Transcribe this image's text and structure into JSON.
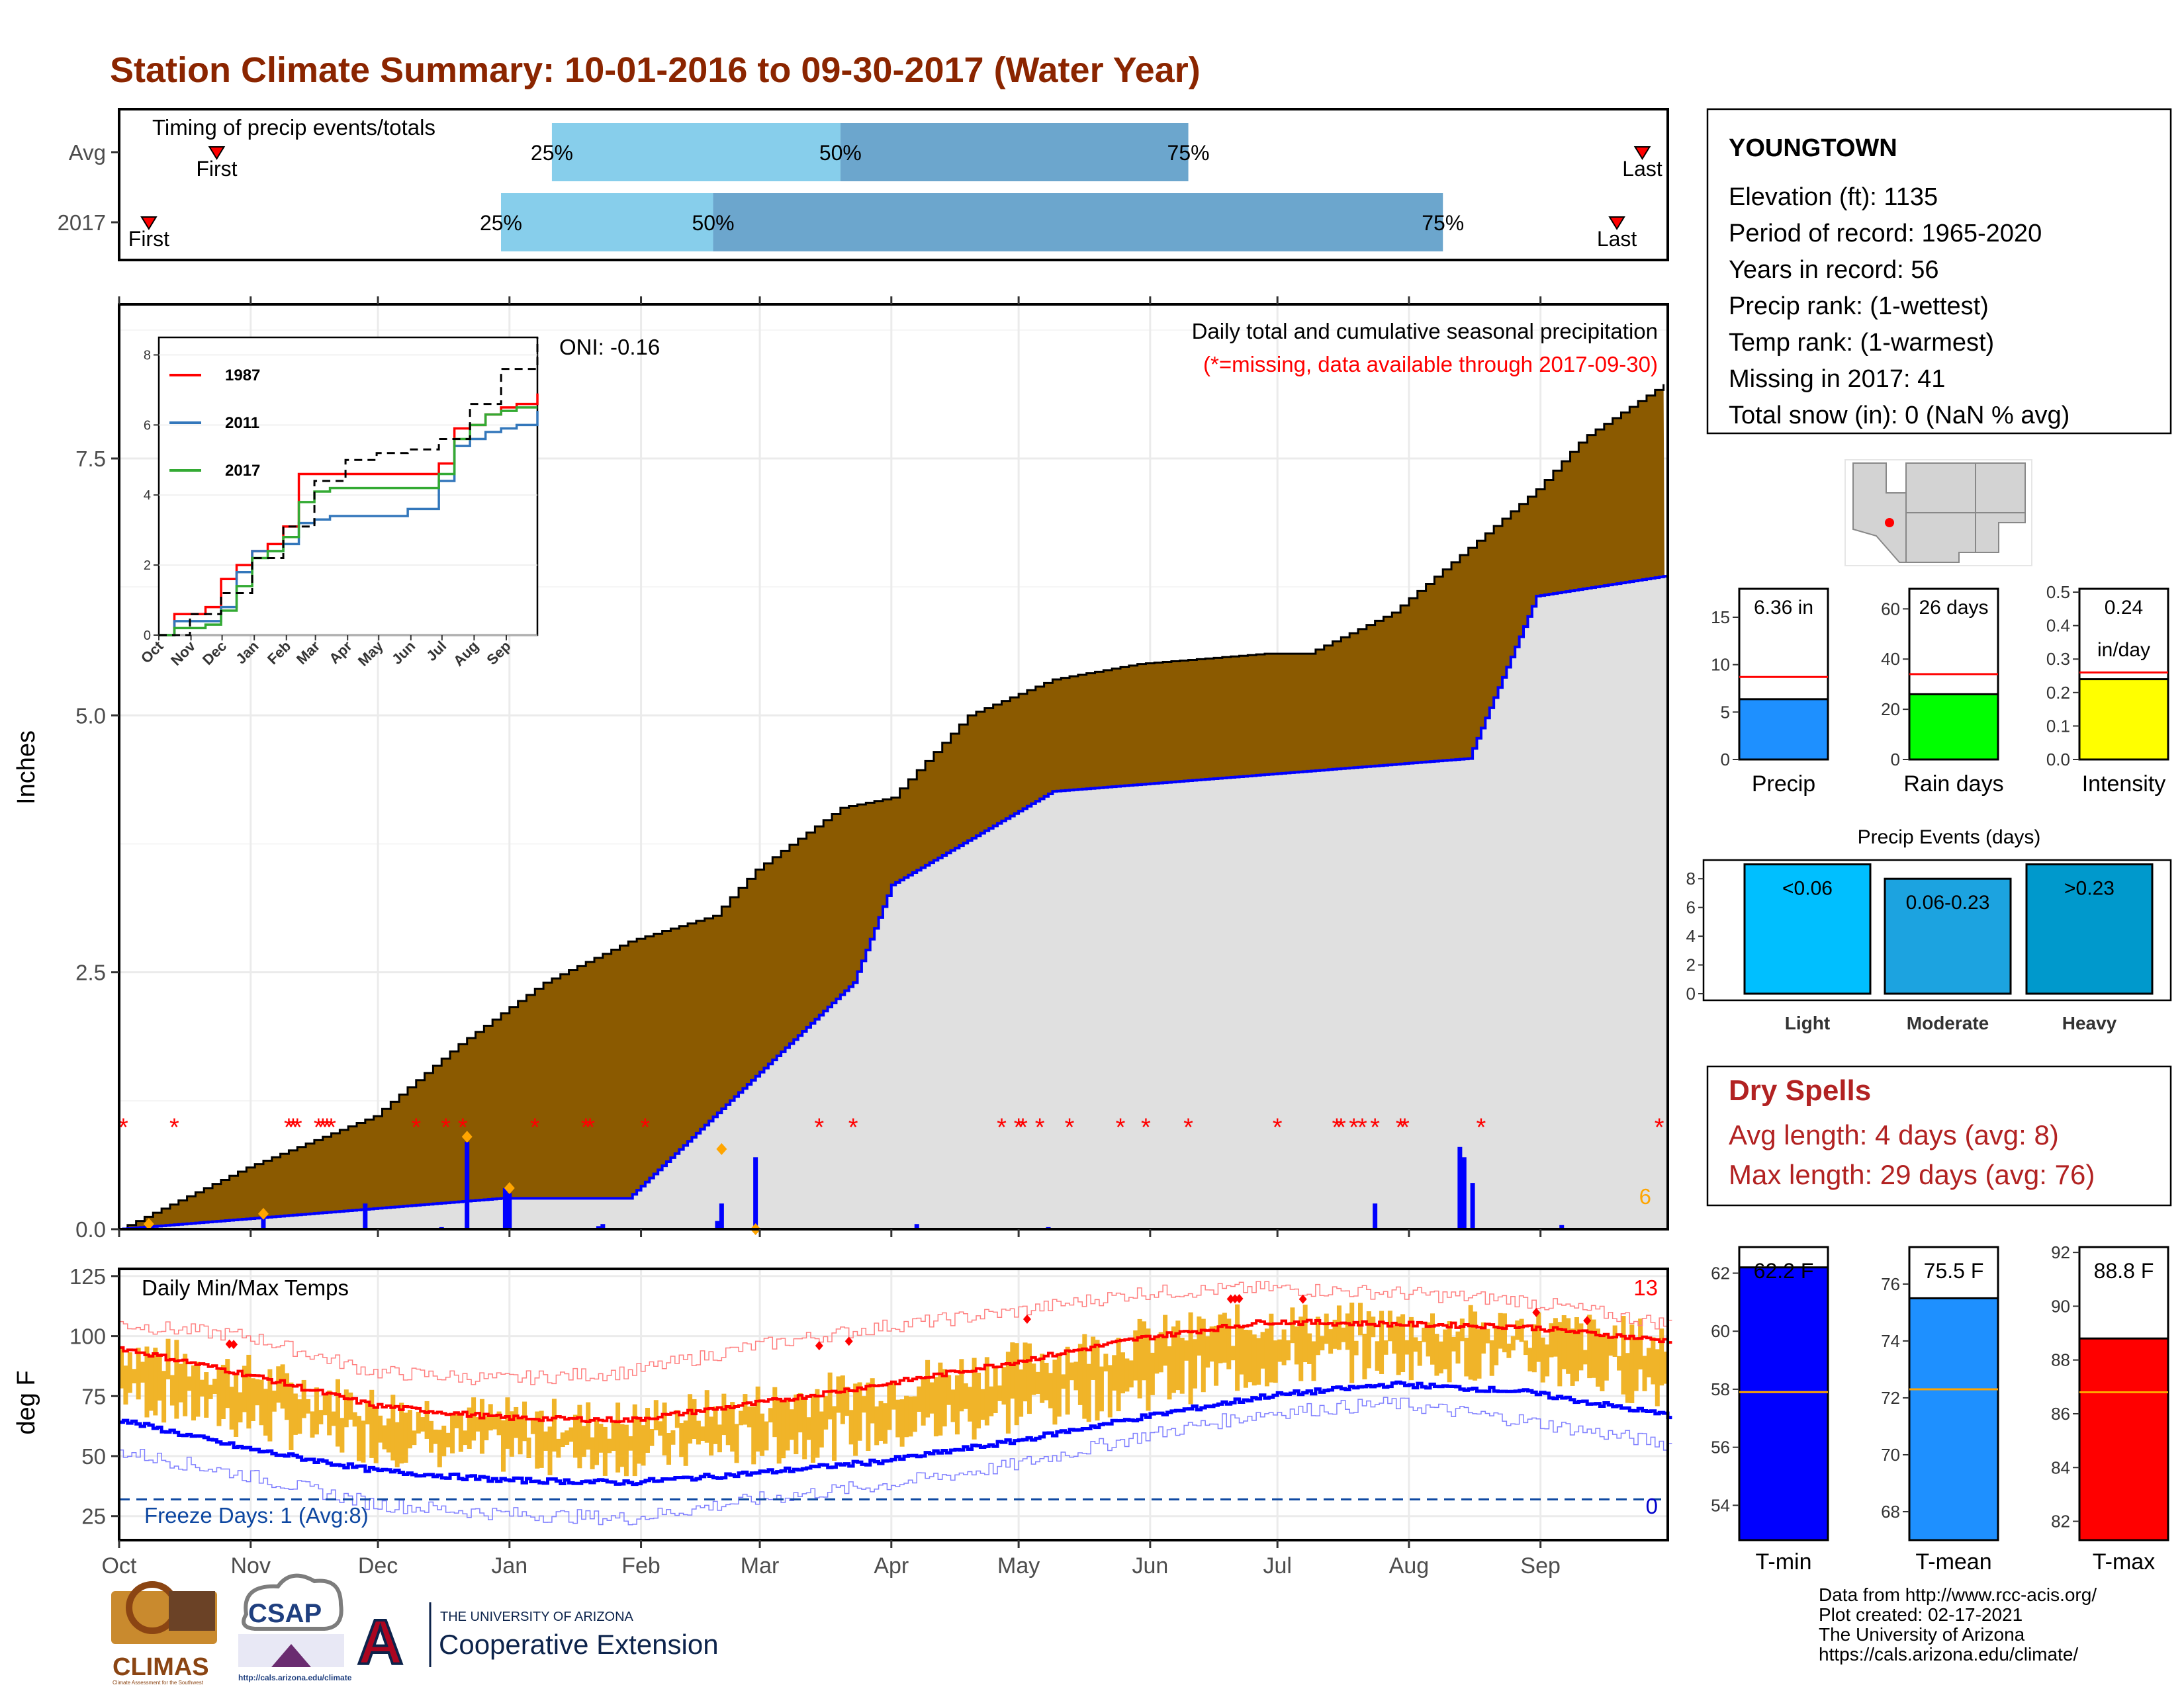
{
  "title": "Station Climate Summary: 10-01-2016 to 09-30-2017 (Water Year)",
  "colors": {
    "title": "#8B2500",
    "brown": "#8B5A00",
    "gray_fill": "#E0E0E0",
    "blue": "#0000FF",
    "red": "#FF0000",
    "orange": "#FFA500",
    "gold": "#F0B429",
    "light_blue": "#87CEEB",
    "steel_blue": "#6CA6CD",
    "dry_red": "#B22222",
    "precip_blue": "#1E90FF",
    "rain_green": "#00FF00",
    "intensity_yellow": "#FFFF00",
    "light_events": "#00BFFF",
    "moderate_events": "#1CA3E0",
    "heavy_events": "#0099CC",
    "tmin": "#0000FF",
    "tmean": "#1E90FF",
    "tmax": "#FF0000"
  },
  "months": [
    "Oct",
    "Nov",
    "Dec",
    "Jan",
    "Feb",
    "Mar",
    "Apr",
    "May",
    "Jun",
    "Jul",
    "Aug",
    "Sep"
  ],
  "timing": {
    "label": "Timing of precip events/totals",
    "rows": [
      {
        "label": "Avg",
        "first_day": 23,
        "last_day": 359,
        "p25_day": 102,
        "p50_day": 170,
        "p75_day": 252,
        "p25": "25%",
        "p50": "50%",
        "p75": "75%",
        "first": "First",
        "last": "Last"
      },
      {
        "label": "2017",
        "first_day": 7,
        "last_day": 353,
        "p25_day": 90,
        "p50_day": 140,
        "p75_day": 312,
        "p25": "25%",
        "p50": "50%",
        "p75": "75%",
        "first": "First",
        "last": "Last"
      }
    ]
  },
  "precip_panel": {
    "ylabel": "Inches",
    "yticks": [
      "0.0",
      "2.5",
      "5.0",
      "7.5"
    ],
    "oni": "ONI: -0.16",
    "subtitle": "Daily total and cumulative seasonal precipitation",
    "missing_note": "(*=missing, data available through 2017-09-30)",
    "count_label": "6"
  },
  "inset": {
    "series": [
      {
        "name": "1987"
      },
      {
        "name": "2011"
      },
      {
        "name": "2017"
      }
    ],
    "yticks": [
      "0",
      "2",
      "4",
      "6",
      "8"
    ],
    "xticks": [
      "Oct",
      "Nov",
      "Dec",
      "Jan",
      "Feb",
      "Mar",
      "Apr",
      "May",
      "Jun",
      "Jul",
      "Aug",
      "Sep"
    ]
  },
  "temp_panel": {
    "title": "Daily Min/Max Temps",
    "ylabel": "deg F",
    "yticks": [
      "25",
      "50",
      "75",
      "100",
      "125"
    ],
    "freeze": "Freeze Days: 1 (Avg:8)",
    "count_hot": "13",
    "count_freeze": "0"
  },
  "station": {
    "name": "YOUNGTOWN",
    "lines": [
      "Elevation (ft): 1135",
      "Period of record: 1965-2020",
      "Years in record: 56",
      "Precip rank:  (1-wettest)",
      "Temp rank:  (1-warmest)",
      "Missing in 2017: 41",
      "Total snow (in): 0 (NaN % avg)"
    ]
  },
  "mini_bars": [
    {
      "label": "Precip",
      "value_text": "6.36 in",
      "value": 6.36,
      "avg": 8.7,
      "ymax": 18,
      "yticks": [
        "0",
        "5",
        "10",
        "15"
      ],
      "ytick_vals": [
        0,
        5,
        10,
        15
      ]
    },
    {
      "label": "Rain days",
      "value_text": "26 days",
      "value": 26,
      "avg": 34,
      "ymax": 68,
      "yticks": [
        "0",
        "20",
        "40",
        "60"
      ],
      "ytick_vals": [
        0,
        20,
        40,
        60
      ]
    },
    {
      "label": "Intensity",
      "value_text": "0.24",
      "value_text2": "in/day",
      "value": 0.24,
      "avg": 0.26,
      "ymax": 0.51,
      "yticks": [
        "0.0",
        "0.1",
        "0.2",
        "0.3",
        "0.4",
        "0.5"
      ],
      "ytick_vals": [
        0,
        0.1,
        0.2,
        0.3,
        0.4,
        0.5
      ]
    }
  ],
  "events": {
    "title": "Precip Events (days)",
    "yticks": [
      "0",
      "2",
      "4",
      "6",
      "8"
    ],
    "bars": [
      {
        "name": "Light",
        "range": "<0.06",
        "value": 9
      },
      {
        "name": "Moderate",
        "range": "0.06-0.23",
        "value": 8
      },
      {
        "name": "Heavy",
        "range": ">0.23",
        "value": 9
      }
    ]
  },
  "dry_spells": {
    "title": "Dry Spells",
    "avg_line": "Avg length: 4 days (avg: 8)",
    "max_line": "Max length: 29 days (avg: 76)"
  },
  "temp_bars": [
    {
      "label": "T-min",
      "value_text": "62.2 F",
      "value": 62.2,
      "avg": 57.9,
      "ymin": 52.8,
      "ymax": 62.9,
      "yticks": [
        "54",
        "56",
        "58",
        "60",
        "62"
      ],
      "ytick_vals": [
        54,
        56,
        58,
        60,
        62
      ]
    },
    {
      "label": "T-mean",
      "value_text": "75.5 F",
      "value": 75.5,
      "avg": 72.3,
      "ymin": 67.0,
      "ymax": 77.3,
      "yticks": [
        "68",
        "70",
        "72",
        "74",
        "76"
      ],
      "ytick_vals": [
        68,
        70,
        72,
        74,
        76
      ]
    },
    {
      "label": "T-max",
      "value_text": "88.8 F",
      "value": 88.8,
      "avg": 86.8,
      "ymin": 81.3,
      "ymax": 92.2,
      "yticks": [
        "82",
        "84",
        "86",
        "88",
        "90",
        "92"
      ],
      "ytick_vals": [
        82,
        84,
        86,
        88,
        90,
        92
      ]
    }
  ],
  "footer": {
    "lines": [
      "Data from http://www.rcc-acis.org/",
      "Plot created: 02-17-2021",
      "The University of Arizona",
      "https://cals.arizona.edu/climate/"
    ],
    "logos": {
      "climas": "CLIMAS",
      "climas_sub": "Climate Assessment for the Southwest",
      "csap": "CSAP",
      "csap_url": "http://cals.arizona.edu/climate",
      "ua_small": "THE UNIVERSITY OF ARIZONA",
      "ua_big": "Cooperative Extension",
      "ua_letter": "A"
    }
  },
  "chart_data": [
    {
      "type": "area",
      "title": "Daily total and cumulative seasonal precipitation",
      "ylabel": "Inches",
      "ylim": [
        0,
        9.0
      ],
      "x_unit": "day of water year",
      "cumulative_2017_breakpoints": {
        "x": [
          0,
          90,
          120,
          173,
          182,
          220,
          318,
          334,
          365
        ],
        "y": [
          0,
          0.3,
          0.3,
          2.4,
          3.35,
          4.26,
          4.58,
          6.16,
          6.36
        ]
      },
      "cumulative_avg_breakpoints": {
        "x": [
          0,
          30,
          60,
          80,
          100,
          120,
          140,
          150,
          170,
          182,
          200,
          220,
          240,
          270,
          280,
          300,
          320,
          334,
          345,
          365
        ],
        "y": [
          0,
          0.6,
          1.1,
          1.8,
          2.4,
          2.8,
          3.05,
          3.5,
          4.1,
          4.2,
          5.0,
          5.35,
          5.5,
          5.6,
          5.6,
          6.0,
          6.7,
          7.2,
          7.7,
          8.25
        ]
      },
      "daily_bars": [
        {
          "x": 34,
          "y": 0.1
        },
        {
          "x": 58,
          "y": 0.25
        },
        {
          "x": 76,
          "y": 0.02
        },
        {
          "x": 82,
          "y": 0.85
        },
        {
          "x": 91,
          "y": 0.4
        },
        {
          "x": 92,
          "y": 0.35
        },
        {
          "x": 100,
          "y": 0.01
        },
        {
          "x": 113,
          "y": 0.03
        },
        {
          "x": 114,
          "y": 0.05
        },
        {
          "x": 141,
          "y": 0.08
        },
        {
          "x": 142,
          "y": 0.25
        },
        {
          "x": 150,
          "y": 0.7
        },
        {
          "x": 188,
          "y": 0.05
        },
        {
          "x": 219,
          "y": 0.02
        },
        {
          "x": 296,
          "y": 0.25
        },
        {
          "x": 316,
          "y": 0.8
        },
        {
          "x": 317,
          "y": 0.7
        },
        {
          "x": 319,
          "y": 0.45
        },
        {
          "x": 340,
          "y": 0.04
        }
      ],
      "missing_days": [
        1,
        13,
        40,
        41,
        42,
        47,
        48,
        49,
        50,
        70,
        77,
        81,
        98,
        110,
        111,
        124,
        165,
        173,
        208,
        212,
        213,
        217,
        224,
        236,
        242,
        252,
        273,
        287,
        288,
        291,
        293,
        296,
        302,
        303,
        321,
        363
      ],
      "first_percentile_markers": [
        {
          "x": 7,
          "y": 0.05
        },
        {
          "x": 34,
          "y": 0.15
        },
        {
          "x": 82,
          "y": 0.9
        },
        {
          "x": 92,
          "y": 0.4
        },
        {
          "x": 142,
          "y": 0.78
        },
        {
          "x": 150,
          "y": 0.0
        }
      ],
      "missing_count": 6
    },
    {
      "type": "line",
      "title": "",
      "series": [
        {
          "name": "1987",
          "x": [
            0,
            15,
            30,
            45,
            60,
            75,
            90,
            105,
            120,
            135,
            150,
            165,
            180,
            195,
            210,
            225,
            240,
            255,
            270,
            285,
            300,
            315,
            330,
            345,
            365
          ],
          "y": [
            0,
            0.6,
            0.6,
            0.8,
            1.6,
            2.0,
            2.4,
            2.6,
            3.1,
            4.6,
            4.6,
            4.6,
            4.6,
            4.6,
            4.6,
            4.6,
            4.6,
            4.6,
            4.9,
            5.9,
            6.0,
            6.3,
            6.5,
            6.6,
            6.9
          ]
        },
        {
          "name": "2011",
          "x": [
            0,
            15,
            30,
            45,
            60,
            75,
            90,
            105,
            120,
            135,
            150,
            165,
            180,
            195,
            210,
            225,
            240,
            255,
            270,
            285,
            300,
            315,
            330,
            345,
            365
          ],
          "y": [
            0,
            0.4,
            0.4,
            0.4,
            0.8,
            1.8,
            2.4,
            2.4,
            2.6,
            3.2,
            3.3,
            3.4,
            3.4,
            3.4,
            3.4,
            3.4,
            3.6,
            3.6,
            4.4,
            5.4,
            5.6,
            5.8,
            5.9,
            6.0,
            6.4
          ]
        },
        {
          "name": "2017",
          "x": [
            0,
            15,
            30,
            45,
            60,
            75,
            90,
            105,
            120,
            135,
            150,
            165,
            180,
            195,
            210,
            225,
            240,
            255,
            270,
            285,
            300,
            315,
            330,
            345,
            365
          ],
          "y": [
            0,
            0.2,
            0.2,
            0.3,
            0.7,
            1.4,
            2.2,
            2.4,
            2.8,
            3.8,
            4.1,
            4.2,
            4.2,
            4.2,
            4.2,
            4.2,
            4.2,
            4.2,
            4.6,
            5.6,
            6.0,
            6.3,
            6.4,
            6.5,
            6.5
          ]
        },
        {
          "name": "average",
          "x": [
            0,
            30,
            60,
            90,
            120,
            150,
            180,
            210,
            240,
            270,
            300,
            330,
            365
          ],
          "y": [
            0,
            0.6,
            1.2,
            2.2,
            3.1,
            4.4,
            5.0,
            5.2,
            5.3,
            5.6,
            6.6,
            7.6,
            8.5
          ]
        }
      ],
      "xlabel": "",
      "ylim": [
        0,
        8.5
      ]
    },
    {
      "type": "line",
      "title": "Daily Min/Max Temps",
      "ylabel": "deg F",
      "ylim": [
        15,
        128
      ],
      "series": [
        {
          "name": "avg max",
          "x": [
            0,
            30,
            60,
            90,
            120,
            150,
            180,
            210,
            240,
            270,
            300,
            330,
            365
          ],
          "y": [
            95,
            84,
            71,
            66,
            65,
            72,
            80,
            89,
            99,
            106,
            105,
            104,
            98
          ]
        },
        {
          "name": "avg min",
          "x": [
            0,
            30,
            60,
            90,
            120,
            150,
            180,
            210,
            240,
            270,
            300,
            330,
            365
          ],
          "y": [
            65,
            53,
            44,
            40,
            39,
            43,
            48,
            56,
            66,
            75,
            80,
            77,
            67
          ]
        },
        {
          "name": "record high",
          "x": [
            0,
            30,
            60,
            90,
            120,
            150,
            180,
            210,
            240,
            270,
            300,
            330,
            365
          ],
          "y": [
            105,
            100,
            85,
            82,
            85,
            96,
            104,
            110,
            118,
            120,
            118,
            115,
            105
          ]
        },
        {
          "name": "record low",
          "x": [
            0,
            30,
            60,
            90,
            120,
            150,
            180,
            210,
            240,
            270,
            300,
            330,
            365
          ],
          "y": [
            52,
            42,
            30,
            26,
            24,
            32,
            38,
            46,
            58,
            68,
            72,
            65,
            55
          ]
        }
      ],
      "daily_range": {
        "first_day_max": 88,
        "last_day_min": 60
      },
      "freeze_threshold": 32,
      "record_high_days": [
        26,
        27,
        165,
        172,
        214,
        262,
        263,
        264,
        279,
        334,
        346
      ]
    },
    {
      "type": "bar",
      "title": "Precip Events (days)",
      "categories": [
        "Light",
        "Moderate",
        "Heavy"
      ],
      "values": [
        9,
        8,
        9
      ]
    }
  ]
}
